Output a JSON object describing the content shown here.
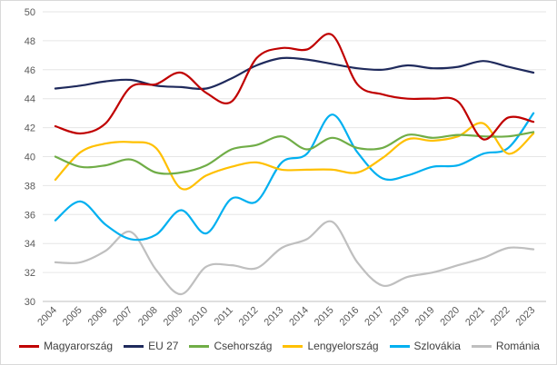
{
  "chart_data": {
    "type": "line",
    "title": "",
    "xlabel": "",
    "ylabel": "",
    "ylim": [
      30,
      50
    ],
    "yticks": [
      30,
      32,
      34,
      36,
      38,
      40,
      42,
      44,
      46,
      48,
      50
    ],
    "ytick_labels": [
      "30",
      "32",
      "34",
      "36",
      "38",
      "40",
      "42",
      "44",
      "46",
      "48",
      "50"
    ],
    "categories": [
      "2004",
      "2005",
      "2006",
      "2007",
      "2008",
      "2009",
      "2010",
      "2011",
      "2012",
      "2013",
      "2014",
      "2015",
      "2016",
      "2017",
      "2018",
      "2019",
      "2020",
      "2021",
      "2022",
      "2023"
    ],
    "grid": true,
    "legend_position": "bottom",
    "series": [
      {
        "name": "Magyarország",
        "color": "#c00000",
        "values": [
          42.1,
          41.6,
          42.3,
          44.8,
          45.0,
          45.8,
          44.4,
          43.8,
          46.8,
          47.5,
          47.4,
          48.4,
          45.0,
          44.3,
          44.0,
          44.0,
          43.8,
          41.2,
          42.7,
          42.4
        ]
      },
      {
        "name": "EU 27",
        "color": "#1f2a5c",
        "values": [
          44.7,
          44.9,
          45.2,
          45.3,
          44.9,
          44.8,
          44.7,
          45.4,
          46.3,
          46.8,
          46.7,
          46.4,
          46.1,
          46.0,
          46.3,
          46.1,
          46.2,
          46.6,
          46.2,
          45.8
        ]
      },
      {
        "name": "Csehország",
        "color": "#70ad47",
        "values": [
          40.0,
          39.3,
          39.4,
          39.8,
          38.9,
          38.9,
          39.4,
          40.5,
          40.8,
          41.4,
          40.5,
          41.3,
          40.6,
          40.6,
          41.5,
          41.3,
          41.5,
          41.4,
          41.4,
          41.7
        ]
      },
      {
        "name": "Lengyelország",
        "color": "#ffc000",
        "values": [
          38.4,
          40.3,
          40.9,
          41.0,
          40.6,
          37.8,
          38.7,
          39.3,
          39.6,
          39.1,
          39.1,
          39.1,
          38.9,
          39.9,
          41.2,
          41.1,
          41.4,
          42.3,
          40.2,
          41.6
        ]
      },
      {
        "name": "Szlovákia",
        "color": "#00b0f0",
        "values": [
          35.6,
          36.9,
          35.3,
          34.3,
          34.6,
          36.3,
          34.7,
          37.1,
          36.9,
          39.6,
          40.2,
          42.9,
          40.3,
          38.5,
          38.7,
          39.3,
          39.4,
          40.2,
          40.6,
          43.0
        ]
      },
      {
        "name": "Románia",
        "color": "#bfbfbf",
        "values": [
          32.7,
          32.7,
          33.5,
          34.8,
          32.2,
          30.5,
          32.4,
          32.5,
          32.3,
          33.7,
          34.3,
          35.5,
          32.7,
          31.1,
          31.7,
          32.0,
          32.5,
          33.0,
          33.7,
          33.6
        ]
      }
    ]
  }
}
